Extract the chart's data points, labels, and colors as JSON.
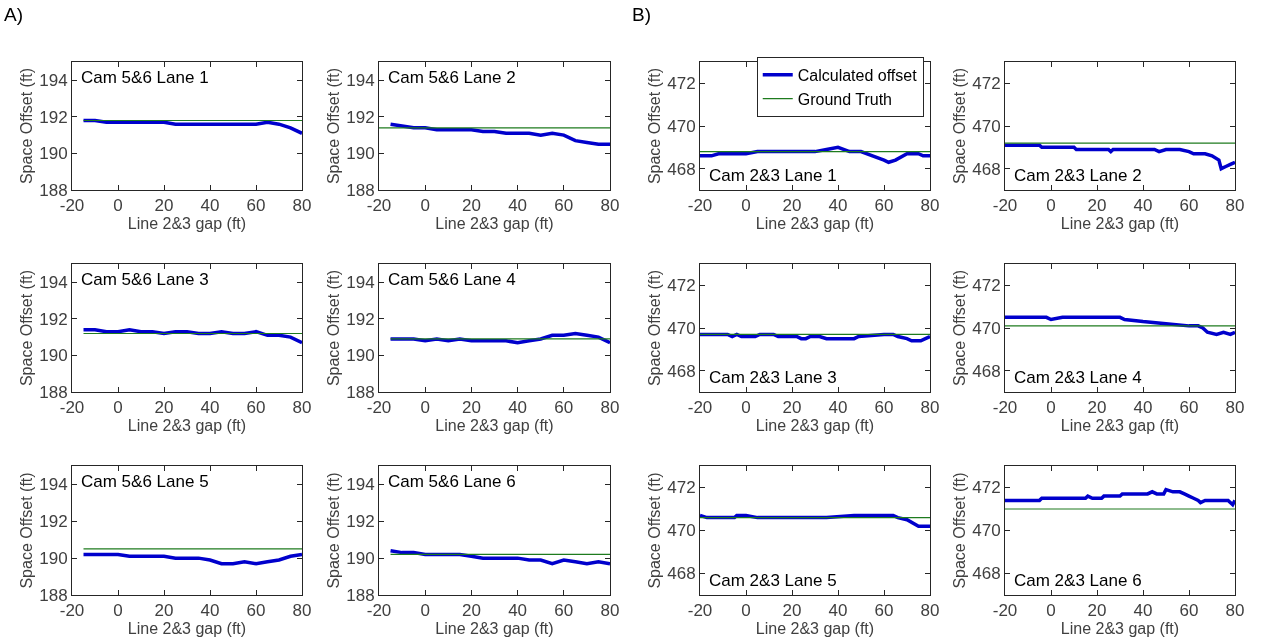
{
  "chart_data": [
    {
      "type": "line",
      "title": "Cam 5&6 Lane 1",
      "xlabel": "Line 2&3 gap (ft)",
      "ylabel": "Space Offset (ft)",
      "annotations": [
        "A)"
      ],
      "xlim": [
        -20,
        80
      ],
      "xticks": [
        -20,
        0,
        20,
        40,
        60,
        80
      ],
      "ylim": [
        188,
        195
      ],
      "yticks": [
        188,
        190,
        192,
        194
      ],
      "series": [
        {
          "color": "#0000cc",
          "x": [
            -15,
            -10,
            -5,
            0,
            5,
            10,
            15,
            20,
            25,
            30,
            35,
            40,
            45,
            50,
            55,
            60,
            65,
            70,
            75,
            80
          ],
          "values": [
            191.8,
            191.8,
            191.7,
            191.7,
            191.7,
            191.7,
            191.7,
            191.7,
            191.6,
            191.6,
            191.6,
            191.6,
            191.6,
            191.6,
            191.6,
            191.6,
            191.7,
            191.6,
            191.4,
            191.1
          ]
        },
        {
          "color": "#1e7b1e",
          "x": [
            -15,
            80
          ],
          "values": [
            191.8,
            191.8
          ]
        }
      ]
    },
    {
      "type": "line",
      "title": "Cam 5&6 Lane 2",
      "xlabel": "Line 2&3 gap (ft)",
      "ylabel": "Space Offset (ft)",
      "xlim": [
        -20,
        80
      ],
      "xticks": [
        -20,
        0,
        20,
        40,
        60,
        80
      ],
      "ylim": [
        188,
        195
      ],
      "yticks": [
        188,
        190,
        192,
        194
      ],
      "series": [
        {
          "color": "#0000cc",
          "x": [
            -15,
            -10,
            -5,
            0,
            5,
            10,
            15,
            20,
            25,
            30,
            35,
            40,
            45,
            50,
            55,
            60,
            65,
            70,
            75,
            80
          ],
          "values": [
            191.6,
            191.5,
            191.4,
            191.4,
            191.3,
            191.3,
            191.3,
            191.3,
            191.2,
            191.2,
            191.1,
            191.1,
            191.1,
            191.0,
            191.1,
            191.0,
            190.7,
            190.6,
            190.5,
            190.5
          ]
        },
        {
          "color": "#1e7b1e",
          "x": [
            -20,
            80
          ],
          "values": [
            191.4,
            191.4
          ]
        }
      ]
    },
    {
      "type": "line",
      "title": "Cam 5&6 Lane 3",
      "xlabel": "Line 2&3 gap (ft)",
      "ylabel": "Space Offset (ft)",
      "xlim": [
        -20,
        80
      ],
      "xticks": [
        -20,
        0,
        20,
        40,
        60,
        80
      ],
      "ylim": [
        188,
        195
      ],
      "yticks": [
        188,
        190,
        192,
        194
      ],
      "series": [
        {
          "color": "#0000cc",
          "x": [
            -15,
            -10,
            -5,
            0,
            5,
            10,
            15,
            20,
            25,
            30,
            35,
            40,
            45,
            50,
            55,
            60,
            65,
            70,
            75,
            80
          ],
          "values": [
            191.4,
            191.4,
            191.3,
            191.3,
            191.4,
            191.3,
            191.3,
            191.2,
            191.3,
            191.3,
            191.2,
            191.2,
            191.3,
            191.2,
            191.2,
            191.3,
            191.1,
            191.1,
            191.0,
            190.7
          ]
        },
        {
          "color": "#1e7b1e",
          "x": [
            -15,
            80
          ],
          "values": [
            191.2,
            191.2
          ]
        }
      ]
    },
    {
      "type": "line",
      "title": "Cam 5&6 Lane 4",
      "xlabel": "Line 2&3 gap (ft)",
      "ylabel": "Space Offset (ft)",
      "xlim": [
        -20,
        80
      ],
      "xticks": [
        -20,
        0,
        20,
        40,
        60,
        80
      ],
      "ylim": [
        188,
        195
      ],
      "yticks": [
        188,
        190,
        192,
        194
      ],
      "series": [
        {
          "color": "#0000cc",
          "x": [
            -15,
            -10,
            -5,
            0,
            5,
            10,
            15,
            20,
            25,
            30,
            35,
            40,
            45,
            50,
            55,
            60,
            65,
            70,
            75,
            80
          ],
          "values": [
            190.9,
            190.9,
            190.9,
            190.8,
            190.9,
            190.8,
            190.9,
            190.8,
            190.8,
            190.8,
            190.8,
            190.7,
            190.8,
            190.9,
            191.1,
            191.1,
            191.2,
            191.1,
            191.0,
            190.7
          ]
        },
        {
          "color": "#1e7b1e",
          "x": [
            -15,
            80
          ],
          "values": [
            190.9,
            190.9
          ]
        }
      ]
    },
    {
      "type": "line",
      "title": "Cam 5&6 Lane 5",
      "xlabel": "Line 2&3 gap (ft)",
      "ylabel": "Space Offset (ft)",
      "xlim": [
        -20,
        80
      ],
      "xticks": [
        -20,
        0,
        20,
        40,
        60,
        80
      ],
      "ylim": [
        188,
        195
      ],
      "yticks": [
        188,
        190,
        192,
        194
      ],
      "series": [
        {
          "color": "#0000cc",
          "x": [
            -15,
            -10,
            -5,
            0,
            5,
            10,
            15,
            20,
            25,
            30,
            35,
            40,
            45,
            50,
            55,
            60,
            65,
            70,
            75,
            80
          ],
          "values": [
            190.2,
            190.2,
            190.2,
            190.2,
            190.1,
            190.1,
            190.1,
            190.1,
            190.0,
            190.0,
            190.0,
            189.9,
            189.7,
            189.7,
            189.8,
            189.7,
            189.8,
            189.9,
            190.1,
            190.2
          ]
        },
        {
          "color": "#1e7b1e",
          "x": [
            -15,
            80
          ],
          "values": [
            190.5,
            190.5
          ]
        }
      ]
    },
    {
      "type": "line",
      "title": "Cam 5&6 Lane 6",
      "xlabel": "Line 2&3 gap (ft)",
      "ylabel": "Space Offset (ft)",
      "xlim": [
        -20,
        80
      ],
      "xticks": [
        -20,
        0,
        20,
        40,
        60,
        80
      ],
      "ylim": [
        188,
        195
      ],
      "yticks": [
        188,
        190,
        192,
        194
      ],
      "series": [
        {
          "color": "#0000cc",
          "x": [
            -15,
            -10,
            -5,
            0,
            5,
            10,
            15,
            20,
            25,
            30,
            35,
            40,
            45,
            50,
            55,
            60,
            65,
            70,
            75,
            80
          ],
          "values": [
            190.4,
            190.3,
            190.3,
            190.2,
            190.2,
            190.2,
            190.2,
            190.1,
            190.0,
            190.0,
            190.0,
            190.0,
            189.9,
            189.9,
            189.7,
            189.9,
            189.8,
            189.7,
            189.8,
            189.7
          ]
        },
        {
          "color": "#1e7b1e",
          "x": [
            -15,
            80
          ],
          "values": [
            190.2,
            190.2
          ]
        }
      ]
    },
    {
      "type": "line",
      "title": "Cam 2&3 Lane 1",
      "xlabel": "Line 2&3 gap (ft)",
      "ylabel": "Space Offset (ft)",
      "annotations": [
        "B)"
      ],
      "xlim": [
        -20,
        80
      ],
      "xticks": [
        -20,
        0,
        20,
        40,
        60,
        80
      ],
      "ylim": [
        467,
        473
      ],
      "yticks": [
        468,
        470,
        472
      ],
      "legend": "top",
      "series": [
        {
          "name": "Calculated offset",
          "color": "#0000cc",
          "x": [
            -20,
            -15,
            -12,
            0,
            5,
            30,
            35,
            40,
            45,
            50,
            55,
            60,
            62,
            65,
            70,
            75,
            77,
            80
          ],
          "values": [
            468.6,
            468.6,
            468.7,
            468.7,
            468.8,
            468.8,
            468.9,
            469.0,
            468.8,
            468.8,
            468.6,
            468.4,
            468.3,
            468.4,
            468.7,
            468.7,
            468.6,
            468.6
          ]
        },
        {
          "name": "Ground Truth",
          "color": "#1e7b1e",
          "x": [
            -20,
            80
          ],
          "values": [
            468.8,
            468.8
          ]
        }
      ]
    },
    {
      "type": "line",
      "title": "Cam 2&3 Lane 2",
      "xlabel": "Line 2&3 gap (ft)",
      "ylabel": "Space Offset (ft)",
      "xlim": [
        -20,
        80
      ],
      "xticks": [
        -20,
        0,
        20,
        40,
        60,
        80
      ],
      "ylim": [
        467,
        473
      ],
      "yticks": [
        468,
        470,
        472
      ],
      "series": [
        {
          "color": "#0000cc",
          "x": [
            -20,
            -5,
            -4,
            10,
            11,
            25,
            26,
            27,
            45,
            47,
            50,
            56,
            60,
            62,
            67,
            70,
            73,
            74,
            76,
            78,
            80
          ],
          "values": [
            469.1,
            469.1,
            469.0,
            469.0,
            468.9,
            468.9,
            468.8,
            468.9,
            468.9,
            468.8,
            468.9,
            468.9,
            468.8,
            468.7,
            468.7,
            468.6,
            468.4,
            468.0,
            468.1,
            468.2,
            468.3
          ]
        },
        {
          "color": "#1e7b1e",
          "x": [
            -20,
            80
          ],
          "values": [
            469.2,
            469.2
          ]
        }
      ]
    },
    {
      "type": "line",
      "title": "Cam 2&3 Lane 3",
      "xlabel": "Line 2&3 gap (ft)",
      "ylabel": "Space Offset (ft)",
      "xlim": [
        -20,
        80
      ],
      "xticks": [
        -20,
        0,
        20,
        40,
        60,
        80
      ],
      "ylim": [
        467,
        473
      ],
      "yticks": [
        468,
        470,
        472
      ],
      "series": [
        {
          "color": "#0000cc",
          "x": [
            -20,
            -8,
            -6,
            -4,
            -2,
            4,
            6,
            12,
            14,
            22,
            24,
            26,
            28,
            32,
            35,
            47,
            49,
            60,
            64,
            66,
            70,
            72,
            76,
            78,
            80
          ],
          "values": [
            469.7,
            469.7,
            469.6,
            469.7,
            469.6,
            469.6,
            469.7,
            469.7,
            469.6,
            469.6,
            469.5,
            469.5,
            469.6,
            469.6,
            469.5,
            469.5,
            469.6,
            469.7,
            469.7,
            469.6,
            469.5,
            469.4,
            469.4,
            469.5,
            469.6
          ]
        },
        {
          "color": "#1e7b1e",
          "x": [
            -20,
            80
          ],
          "values": [
            469.7,
            469.7
          ]
        }
      ]
    },
    {
      "type": "line",
      "title": "Cam 2&3 Lane 4",
      "xlabel": "Line 2&3 gap (ft)",
      "ylabel": "Space Offset (ft)",
      "xlim": [
        -20,
        80
      ],
      "xticks": [
        -20,
        0,
        20,
        40,
        60,
        80
      ],
      "ylim": [
        467,
        473
      ],
      "yticks": [
        468,
        470,
        472
      ],
      "series": [
        {
          "color": "#0000cc",
          "x": [
            -20,
            -2,
            0,
            5,
            30,
            32,
            40,
            50,
            60,
            64,
            66,
            68,
            72,
            75,
            78,
            80
          ],
          "values": [
            470.5,
            470.5,
            470.4,
            470.5,
            470.5,
            470.4,
            470.3,
            470.2,
            470.1,
            470.1,
            470.0,
            469.8,
            469.7,
            469.8,
            469.7,
            469.8
          ]
        },
        {
          "color": "#1e7b1e",
          "x": [
            -20,
            80
          ],
          "values": [
            470.1,
            470.1
          ]
        }
      ]
    },
    {
      "type": "line",
      "title": "Cam 2&3 Lane 5",
      "xlabel": "Line 2&3 gap (ft)",
      "ylabel": "Space Offset (ft)",
      "xlim": [
        -20,
        80
      ],
      "xticks": [
        -20,
        0,
        20,
        40,
        60,
        80
      ],
      "ylim": [
        467,
        473
      ],
      "yticks": [
        468,
        470,
        472
      ],
      "series": [
        {
          "color": "#0000cc",
          "x": [
            -20,
            -17,
            -5,
            -4,
            0,
            5,
            35,
            47,
            64,
            66,
            70,
            75,
            78,
            80
          ],
          "values": [
            470.7,
            470.6,
            470.6,
            470.7,
            470.7,
            470.6,
            470.6,
            470.7,
            470.7,
            470.6,
            470.5,
            470.2,
            470.2,
            470.2
          ]
        },
        {
          "color": "#1e7b1e",
          "x": [
            -20,
            80
          ],
          "values": [
            470.6,
            470.6
          ]
        }
      ]
    },
    {
      "type": "line",
      "title": "Cam 2&3 Lane 6",
      "xlabel": "Line 2&3 gap (ft)",
      "ylabel": "Space Offset (ft)",
      "xlim": [
        -20,
        80
      ],
      "xticks": [
        -20,
        0,
        20,
        40,
        60,
        80
      ],
      "ylim": [
        467,
        473
      ],
      "yticks": [
        468,
        470,
        472
      ],
      "series": [
        {
          "color": "#0000cc",
          "x": [
            -20,
            -5,
            -4,
            15,
            16,
            18,
            22,
            23,
            30,
            31,
            42,
            44,
            46,
            49,
            50,
            53,
            56,
            58,
            60,
            62,
            64,
            65,
            67,
            77,
            79,
            80
          ],
          "values": [
            471.4,
            471.4,
            471.5,
            471.5,
            471.6,
            471.5,
            471.5,
            471.6,
            471.6,
            471.7,
            471.7,
            471.8,
            471.7,
            471.7,
            471.9,
            471.8,
            471.8,
            471.7,
            471.6,
            471.5,
            471.4,
            471.3,
            471.4,
            471.4,
            471.2,
            471.4
          ]
        },
        {
          "color": "#1e7b1e",
          "x": [
            -20,
            80
          ],
          "values": [
            471.0,
            471.0
          ]
        }
      ]
    }
  ]
}
